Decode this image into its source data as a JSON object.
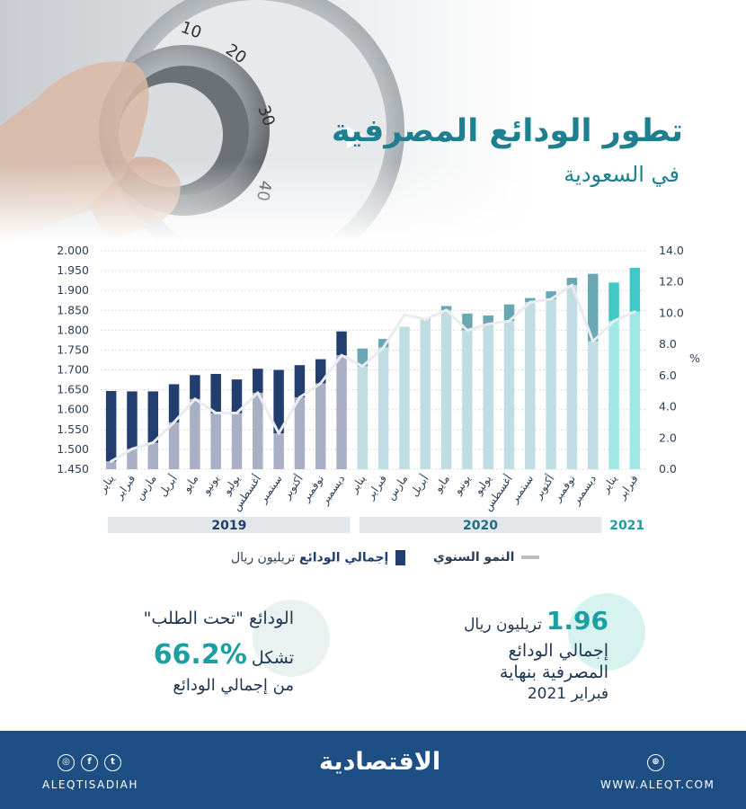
{
  "header": {
    "title": "تطور الودائع المصرفية",
    "subtitle": "في السعودية"
  },
  "chart_data": {
    "type": "bar",
    "unit_right": "%",
    "y_left": {
      "ticks": [
        "1.450",
        "1.500",
        "1.550",
        "1.600",
        "1.650",
        "1.700",
        "1.750",
        "1.800",
        "1.850",
        "1.900",
        "1.950",
        "2.000"
      ],
      "range": [
        1.45,
        2.0
      ]
    },
    "y_right": {
      "ticks": [
        "0.0",
        "2.0",
        "4.0",
        "6.0",
        "8.0",
        "10.0",
        "12.0",
        "14.0"
      ],
      "range": [
        0,
        14
      ]
    },
    "categories": [
      "يناير",
      "فبراير",
      "مارس",
      "أبريل",
      "مايو",
      "يونيو",
      "يوليو",
      "أغسطس",
      "سبتمبر",
      "أكتوبر",
      "نوفمبر",
      "ديسمبر",
      "يناير",
      "فبراير",
      "مارس",
      "أبريل",
      "مايو",
      "يونيو",
      "يوليو",
      "أغسطس",
      "سبتمبر",
      "أكتوبر",
      "نوفمبر",
      "ديسمبر",
      "يناير",
      "فبراير"
    ],
    "years": [
      {
        "label": "2019",
        "start": 0,
        "end": 11
      },
      {
        "label": "2020",
        "start": 12,
        "end": 23
      },
      {
        "label": "2021",
        "start": 24,
        "end": 25
      }
    ],
    "series": [
      {
        "name": "إجمالي الودائع",
        "axis": "left",
        "values": [
          1.647,
          1.646,
          1.646,
          1.664,
          1.687,
          1.69,
          1.676,
          1.703,
          1.7,
          1.712,
          1.727,
          1.797,
          1.754,
          1.778,
          1.809,
          1.829,
          1.861,
          1.842,
          1.837,
          1.865,
          1.881,
          1.898,
          1.932,
          1.942,
          1.92,
          1.957
        ]
      },
      {
        "name": "النمو السنوي",
        "axis": "right",
        "values": [
          0.5,
          1.3,
          1.7,
          3.0,
          4.5,
          3.6,
          3.6,
          4.9,
          2.3,
          4.6,
          5.5,
          7.3,
          6.6,
          7.8,
          9.9,
          9.6,
          10.2,
          8.9,
          9.3,
          9.5,
          10.7,
          10.9,
          11.8,
          8.2,
          9.5,
          10.1
        ]
      }
    ]
  },
  "legend": {
    "bar_label": "إجمالي الودائع",
    "bar_unit": "تريليون ريال",
    "line_label": "النمو السنوي"
  },
  "stats": {
    "total_value": "1.96",
    "total_unit": "تريليون ريال",
    "total_line1": "إجمالي الودائع",
    "total_line2": "المصرفية بنهاية",
    "total_line3": "فبراير 2021",
    "demand_heading": "الودائع \"تحت الطلب\"",
    "demand_prefix": "تشكل",
    "demand_value": "%66.2",
    "demand_suffix": "من إجمالي الودائع"
  },
  "footer": {
    "handle": "ALEQTISADIAH",
    "logo": "الاقتصادية",
    "website": "WWW.ALEQT.COM"
  },
  "colors": {
    "bar_2019": "#213e6e",
    "bar_2020": "#6aa7b5",
    "bar_2021": "#3fc8c6",
    "line": "#e9ebee",
    "footer": "#1d4f84",
    "title": "#1d7f8f"
  }
}
